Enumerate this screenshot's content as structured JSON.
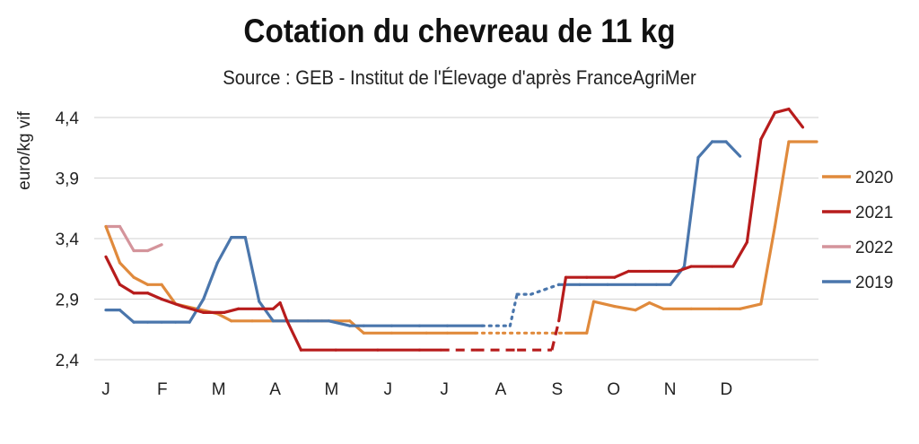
{
  "chart_data": {
    "type": "line",
    "title": "Cotation du chevreau de 11 kg",
    "subtitle": "Source : GEB - Institut de l'Élevage d'après FranceAgriMer",
    "ylabel": "euro/kg vif",
    "xlabel": "",
    "ylim": [
      2.4,
      4.4
    ],
    "yticks": [
      "2,4",
      "2,9",
      "3,4",
      "3,9",
      "4,4"
    ],
    "ytick_values": [
      2.4,
      2.9,
      3.4,
      3.9,
      4.4
    ],
    "months": [
      "J",
      "F",
      "M",
      "A",
      "M",
      "J",
      "J",
      "A",
      "S",
      "O",
      "N",
      "D"
    ],
    "grid": true,
    "legend_position": "right",
    "x_unit": "week",
    "series": [
      {
        "name": "2020",
        "color": "#E08A3C",
        "points": [
          [
            1,
            3.5
          ],
          [
            3,
            3.2
          ],
          [
            5,
            3.08
          ],
          [
            7,
            3.02
          ],
          [
            9,
            3.02
          ],
          [
            11,
            2.86
          ],
          [
            14,
            2.82
          ],
          [
            17,
            2.78
          ],
          [
            19,
            2.72
          ],
          [
            22,
            2.72
          ],
          [
            27,
            2.72
          ],
          [
            32,
            2.72
          ],
          [
            36,
            2.72
          ],
          [
            38,
            2.62
          ],
          [
            42,
            2.62
          ],
          [
            47,
            2.62
          ],
          [
            50,
            2.62
          ],
          [
            54,
            2.62
          ],
          [
            58,
            2.62
          ],
          [
            63,
            2.62
          ],
          [
            67,
            2.62
          ],
          [
            70,
            2.62
          ],
          [
            71,
            2.88
          ],
          [
            74,
            2.84
          ],
          [
            77,
            2.81
          ],
          [
            79,
            2.87
          ],
          [
            81,
            2.82
          ],
          [
            85,
            2.82
          ],
          [
            89,
            2.82
          ],
          [
            92,
            2.82
          ],
          [
            95,
            2.86
          ],
          [
            97,
            3.5
          ],
          [
            99,
            4.2
          ],
          [
            103,
            4.2
          ]
        ],
        "dashed_ranges": [
          [
            54,
            68
          ]
        ]
      },
      {
        "name": "2021",
        "color": "#B71C1C",
        "points": [
          [
            1,
            3.25
          ],
          [
            3,
            3.02
          ],
          [
            5,
            2.95
          ],
          [
            7,
            2.95
          ],
          [
            9,
            2.9
          ],
          [
            12,
            2.84
          ],
          [
            15,
            2.79
          ],
          [
            18,
            2.79
          ],
          [
            20,
            2.82
          ],
          [
            23,
            2.82
          ],
          [
            25,
            2.82
          ],
          [
            26,
            2.87
          ],
          [
            27,
            2.72
          ],
          [
            29,
            2.48
          ],
          [
            34,
            2.48
          ],
          [
            40,
            2.48
          ],
          [
            46,
            2.48
          ],
          [
            49,
            2.48
          ],
          [
            54,
            2.48
          ],
          [
            60,
            2.48
          ],
          [
            65,
            2.48
          ],
          [
            66,
            2.72
          ],
          [
            67,
            3.08
          ],
          [
            70,
            3.08
          ],
          [
            74,
            3.08
          ],
          [
            76,
            3.13
          ],
          [
            79,
            3.13
          ],
          [
            83,
            3.13
          ],
          [
            85,
            3.17
          ],
          [
            88,
            3.17
          ],
          [
            91,
            3.17
          ],
          [
            93,
            3.37
          ],
          [
            95,
            4.22
          ],
          [
            97,
            4.44
          ],
          [
            99,
            4.47
          ],
          [
            101,
            4.32
          ]
        ],
        "dashed_ranges": [
          [
            48,
            66
          ]
        ]
      },
      {
        "name": "2022",
        "color": "#D4949B",
        "points": [
          [
            1,
            3.5
          ],
          [
            3,
            3.5
          ],
          [
            5,
            3.3
          ],
          [
            7,
            3.3
          ],
          [
            9,
            3.35
          ]
        ],
        "dashed_ranges": []
      },
      {
        "name": "2019",
        "color": "#4A76AC",
        "points": [
          [
            1,
            2.81
          ],
          [
            3,
            2.81
          ],
          [
            5,
            2.71
          ],
          [
            7,
            2.71
          ],
          [
            9,
            2.71
          ],
          [
            11,
            2.71
          ],
          [
            13,
            2.71
          ],
          [
            15,
            2.9
          ],
          [
            17,
            3.2
          ],
          [
            19,
            3.41
          ],
          [
            21,
            3.41
          ],
          [
            23,
            2.88
          ],
          [
            25,
            2.72
          ],
          [
            27,
            2.72
          ],
          [
            30,
            2.72
          ],
          [
            33,
            2.72
          ],
          [
            36,
            2.68
          ],
          [
            38,
            2.68
          ],
          [
            42,
            2.68
          ],
          [
            46,
            2.68
          ],
          [
            50,
            2.68
          ],
          [
            55,
            2.68
          ],
          [
            59,
            2.68
          ],
          [
            60,
            2.94
          ],
          [
            62,
            2.94
          ],
          [
            64,
            2.98
          ],
          [
            66,
            3.02
          ],
          [
            69,
            3.02
          ],
          [
            73,
            3.02
          ],
          [
            77,
            3.02
          ],
          [
            80,
            3.02
          ],
          [
            82,
            3.02
          ],
          [
            84,
            3.17
          ],
          [
            86,
            4.07
          ],
          [
            88,
            4.2
          ],
          [
            90,
            4.2
          ],
          [
            92,
            4.08
          ]
        ],
        "dashed_ranges": [
          [
            54,
            67
          ]
        ]
      }
    ]
  }
}
